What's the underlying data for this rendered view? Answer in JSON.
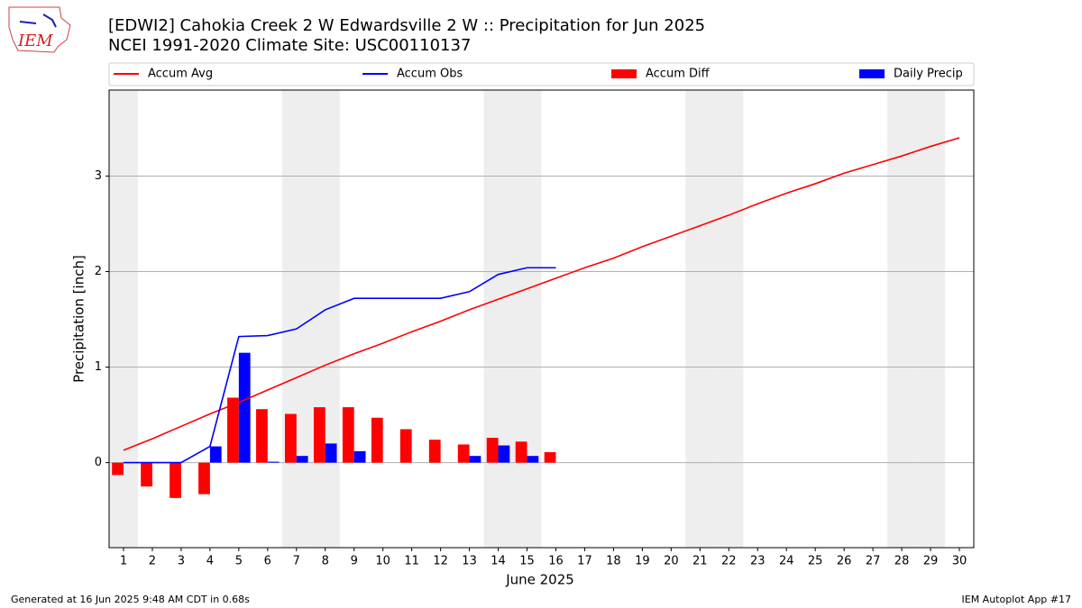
{
  "chart_data": {
    "type": "bar",
    "title": "[EDWI2] Cahokia Creek 2 W Edwardsville 2 W :: Precipitation for Jun 2025",
    "subtitle": "NCEI 1991-2020 Climate Site: USC00110137",
    "logo_text": "IEM",
    "x_label": "June 2025",
    "y_label": "Precipitation [inch]",
    "footer_left": "Generated at 16 Jun 2025 9:48 AM CDT in 0.68s",
    "footer_right": "IEM Autoplot App #17",
    "x": [
      1,
      2,
      3,
      4,
      5,
      6,
      7,
      8,
      9,
      10,
      11,
      12,
      13,
      14,
      15,
      16,
      17,
      18,
      19,
      20,
      21,
      22,
      23,
      24,
      25,
      26,
      27,
      28,
      29,
      30
    ],
    "xlim": [
      0.5,
      30.5
    ],
    "xticks": [
      1,
      2,
      3,
      4,
      5,
      6,
      7,
      8,
      9,
      10,
      11,
      12,
      13,
      14,
      15,
      16,
      17,
      18,
      19,
      20,
      21,
      22,
      23,
      24,
      25,
      26,
      27,
      28,
      29,
      30
    ],
    "ylim": [
      -0.89,
      3.9
    ],
    "yticks": [
      0,
      1,
      2,
      3
    ],
    "grid": true,
    "weekend_days": [
      1,
      7,
      8,
      14,
      15,
      21,
      22,
      28,
      29
    ],
    "weekend_color": "#eeeeee",
    "series": [
      {
        "name": "Accum Avg",
        "kind": "line",
        "color": "#ff0000",
        "values": [
          0.13,
          0.25,
          0.38,
          0.51,
          0.63,
          0.76,
          0.89,
          1.02,
          1.14,
          1.25,
          1.37,
          1.48,
          1.6,
          1.71,
          1.82,
          1.93,
          2.04,
          2.14,
          2.26,
          2.37,
          2.48,
          2.59,
          2.71,
          2.82,
          2.92,
          3.03,
          3.12,
          3.21,
          3.31,
          3.4
        ]
      },
      {
        "name": "Accum Obs",
        "kind": "line",
        "color": "#0000ff",
        "values": [
          0,
          0,
          0,
          0.17,
          1.32,
          1.33,
          1.4,
          1.6,
          1.72,
          1.72,
          1.72,
          1.72,
          1.79,
          1.97,
          2.04,
          2.04,
          null,
          null,
          null,
          null,
          null,
          null,
          null,
          null,
          null,
          null,
          null,
          null,
          null,
          null
        ]
      },
      {
        "name": "Accum Diff",
        "kind": "bar",
        "offset": -1,
        "color": "#ff0000",
        "values": [
          -0.13,
          -0.25,
          -0.37,
          -0.33,
          0.68,
          0.56,
          0.51,
          0.58,
          0.58,
          0.47,
          0.35,
          0.24,
          0.19,
          0.26,
          0.22,
          0.11,
          null,
          null,
          null,
          null,
          null,
          null,
          null,
          null,
          null,
          null,
          null,
          null,
          null,
          null
        ]
      },
      {
        "name": "Daily Precip",
        "kind": "bar",
        "offset": 0,
        "color": "#0000ff",
        "values": [
          0,
          0,
          0,
          0.17,
          1.15,
          0.01,
          0.07,
          0.2,
          0.12,
          0,
          0,
          0,
          0.07,
          0.18,
          0.07,
          0,
          null,
          null,
          null,
          null,
          null,
          null,
          null,
          null,
          null,
          null,
          null,
          null,
          null,
          null
        ]
      }
    ]
  }
}
